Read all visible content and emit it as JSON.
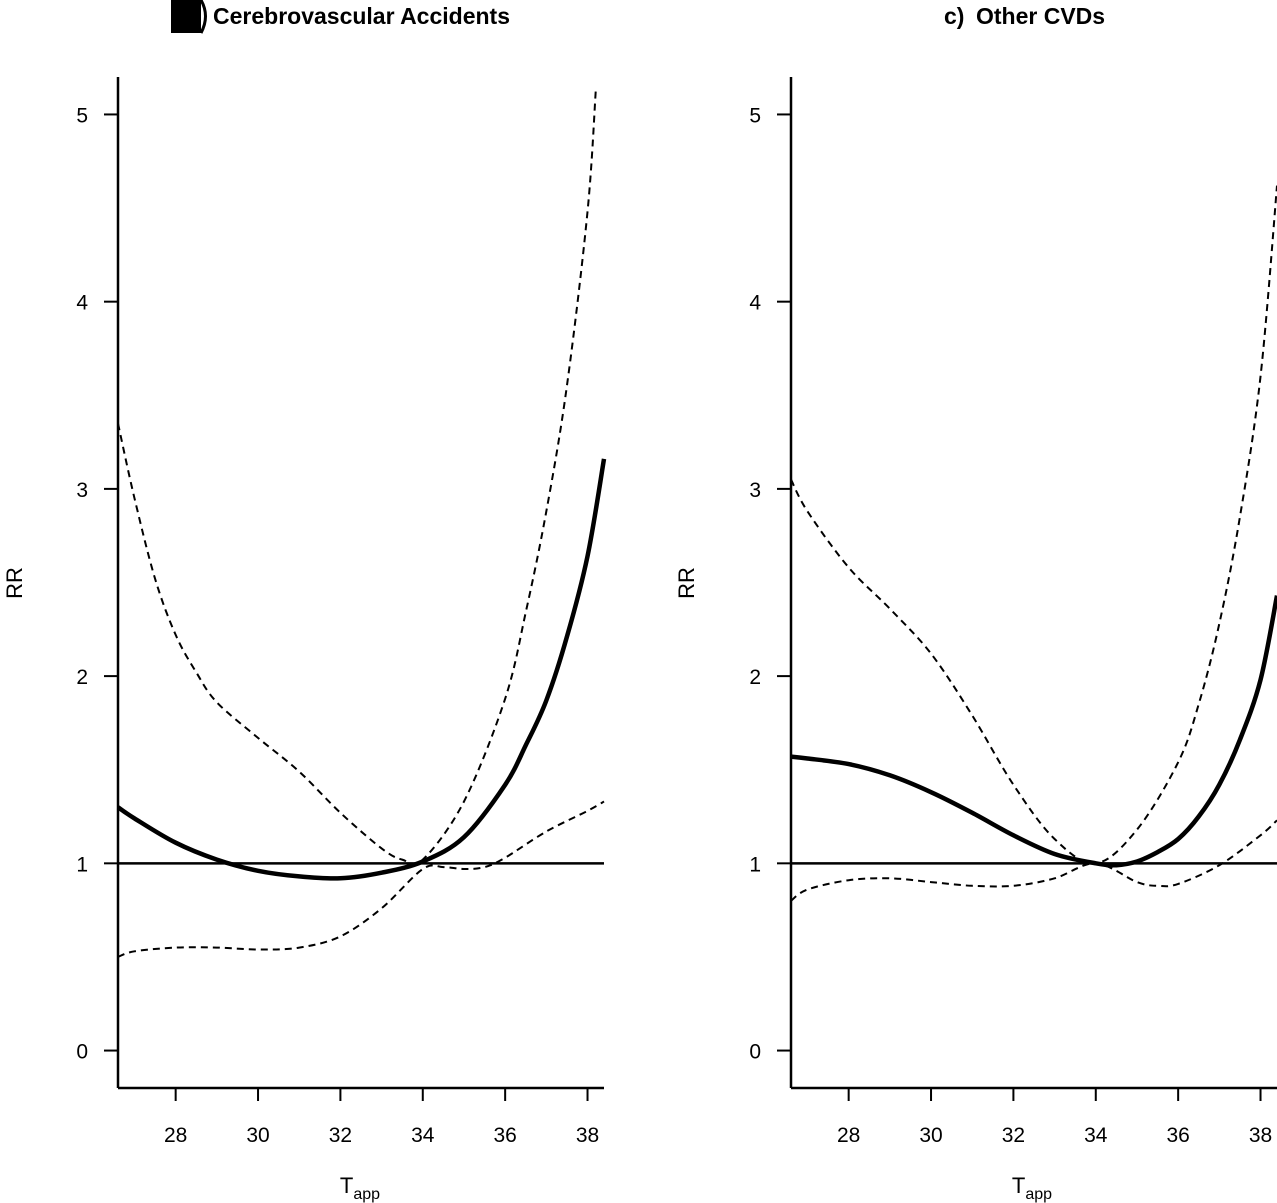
{
  "chart_data": [
    {
      "type": "line",
      "panel": "b",
      "title": "Cerebrovascular Accidents",
      "xlabel": "T",
      "xlabel_sub": "app",
      "ylabel": "RR",
      "xlim": [
        26.6,
        38.4
      ],
      "ylim": [
        -0.2,
        5.2
      ],
      "xticks": [
        28,
        30,
        32,
        34,
        36,
        38
      ],
      "yticks": [
        0,
        1,
        2,
        3,
        4,
        5
      ],
      "reference_line": 1,
      "series": [
        {
          "role": "estimate",
          "style": "solid",
          "x": [
            26.6,
            27.0,
            28.0,
            29.0,
            30.0,
            31.0,
            32.0,
            33.0,
            34.0,
            35.0,
            36.0,
            36.5,
            37.0,
            37.5,
            38.0,
            38.4
          ],
          "y": [
            1.3,
            1.24,
            1.11,
            1.02,
            0.96,
            0.93,
            0.92,
            0.95,
            1.01,
            1.14,
            1.42,
            1.63,
            1.87,
            2.21,
            2.64,
            3.16
          ]
        },
        {
          "role": "upper_ci",
          "style": "dashed",
          "x": [
            26.6,
            27.0,
            27.5,
            28.0,
            28.5,
            29.0,
            30.0,
            31.0,
            32.0,
            33.0,
            33.5,
            34.0,
            35.0,
            36.0,
            36.5,
            37.0,
            37.5,
            38.0,
            38.2
          ],
          "y": [
            3.35,
            2.95,
            2.52,
            2.22,
            2.02,
            1.86,
            1.67,
            1.49,
            1.27,
            1.08,
            1.02,
            1.02,
            1.33,
            1.88,
            2.34,
            2.88,
            3.55,
            4.48,
            5.13
          ]
        },
        {
          "role": "lower_ci",
          "style": "dashed",
          "x": [
            26.6,
            27.0,
            28.0,
            29.0,
            30.0,
            31.0,
            32.0,
            33.0,
            34.0,
            34.5,
            35.0,
            35.5,
            36.0,
            37.0,
            38.0,
            38.4
          ],
          "y": [
            0.5,
            0.53,
            0.55,
            0.55,
            0.54,
            0.55,
            0.61,
            0.76,
            0.97,
            0.98,
            0.97,
            0.98,
            1.03,
            1.17,
            1.28,
            1.33
          ]
        }
      ]
    },
    {
      "type": "line",
      "panel": "c",
      "title": "Other CVDs",
      "xlabel": "T",
      "xlabel_sub": "app",
      "ylabel": "RR",
      "xlim": [
        26.6,
        38.4
      ],
      "ylim": [
        -0.2,
        5.2
      ],
      "xticks": [
        28,
        30,
        32,
        34,
        36,
        38
      ],
      "yticks": [
        0,
        1,
        2,
        3,
        4,
        5
      ],
      "reference_line": 1,
      "series": [
        {
          "role": "estimate",
          "style": "solid",
          "x": [
            26.6,
            27.0,
            28.0,
            29.0,
            30.0,
            31.0,
            32.0,
            33.0,
            34.0,
            34.5,
            35.0,
            35.5,
            36.0,
            36.5,
            37.0,
            37.5,
            38.0,
            38.4
          ],
          "y": [
            1.57,
            1.56,
            1.53,
            1.47,
            1.38,
            1.27,
            1.15,
            1.05,
            1.0,
            0.99,
            1.01,
            1.06,
            1.13,
            1.25,
            1.42,
            1.66,
            1.98,
            2.43
          ]
        },
        {
          "role": "upper_ci",
          "style": "dashed",
          "x": [
            26.6,
            27.0,
            28.0,
            29.0,
            30.0,
            31.0,
            32.0,
            33.0,
            34.0,
            35.0,
            36.0,
            36.5,
            37.0,
            37.5,
            38.0,
            38.4
          ],
          "y": [
            3.05,
            2.88,
            2.58,
            2.36,
            2.12,
            1.79,
            1.42,
            1.13,
            1.0,
            1.18,
            1.54,
            1.85,
            2.28,
            2.85,
            3.6,
            4.62
          ]
        },
        {
          "role": "lower_ci",
          "style": "dashed",
          "x": [
            26.6,
            27.0,
            28.0,
            29.0,
            30.0,
            31.0,
            32.0,
            33.0,
            34.0,
            35.0,
            35.5,
            36.0,
            37.0,
            38.0,
            38.4
          ],
          "y": [
            0.8,
            0.86,
            0.91,
            0.92,
            0.9,
            0.88,
            0.88,
            0.92,
            1.0,
            0.9,
            0.88,
            0.89,
            0.99,
            1.15,
            1.23
          ]
        }
      ]
    }
  ]
}
